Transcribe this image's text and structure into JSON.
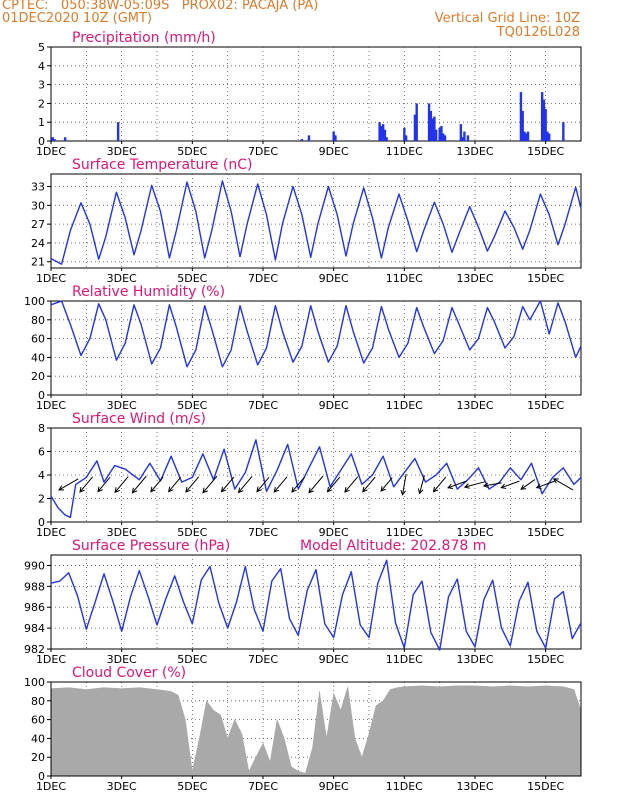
{
  "header": {
    "line1_left": "CPTEC:   050:38W-05:09S   PROX02: PACAJA (PA)",
    "line2_left": "01DEC2020 10Z (GMT)",
    "line2_right": "Vertical Grid Line: 10Z",
    "line3_right": "TQ0126L028",
    "color": "#e07b2a"
  },
  "colors": {
    "line": "#2233ee",
    "bar": "#2233ee",
    "arrow": "#000000",
    "title": "#e0157a",
    "cloud": "#a9a9a9",
    "grid": "#555555"
  },
  "x_labels": [
    "1DEC",
    "3DEC",
    "5DEC",
    "7DEC",
    "9DEC",
    "11DEC",
    "13DEC",
    "15DEC"
  ],
  "x_range_days": [
    0,
    15
  ],
  "chart_data": [
    {
      "type": "bar",
      "title": "Precipitation (mm/h)",
      "ylim": [
        0,
        5
      ],
      "yticks": [
        0,
        1,
        2,
        3,
        4,
        5
      ],
      "x_units": "days since 01DEC2020 10Z",
      "x": [
        0.05,
        0.1,
        0.4,
        1.9,
        7.1,
        7.3,
        8.0,
        8.05,
        9.3,
        9.35,
        9.4,
        9.45,
        9.5,
        10.0,
        10.05,
        10.3,
        10.35,
        10.7,
        10.75,
        10.8,
        10.85,
        10.9,
        11.0,
        11.05,
        11.1,
        11.15,
        11.6,
        11.65,
        11.7,
        11.8,
        13.3,
        13.35,
        13.4,
        13.45,
        13.5,
        13.9,
        13.95,
        14.0,
        14.05,
        14.1,
        14.5
      ],
      "values": [
        0.2,
        0.1,
        0.2,
        1.0,
        0.1,
        0.3,
        0.5,
        0.3,
        1.0,
        0.8,
        0.9,
        0.6,
        0.2,
        0.7,
        0.3,
        1.4,
        2.0,
        2.0,
        1.6,
        1.2,
        1.3,
        0.6,
        0.7,
        0.8,
        0.4,
        0.3,
        0.9,
        0.2,
        0.5,
        0.3,
        2.6,
        1.6,
        0.5,
        0.4,
        0.5,
        2.6,
        2.2,
        1.7,
        0.5,
        0.4,
        1.0
      ]
    },
    {
      "type": "line",
      "title": "Surface Temperature (nC)",
      "ylim": [
        20,
        35
      ],
      "yticks": [
        21,
        24,
        27,
        30,
        33
      ],
      "x_units": "days since 01DEC2020 10Z",
      "x": [
        0.0,
        0.3,
        0.55,
        0.85,
        1.1,
        1.35,
        1.55,
        1.85,
        2.1,
        2.35,
        2.55,
        2.85,
        3.1,
        3.35,
        3.55,
        3.85,
        4.1,
        4.35,
        4.55,
        4.85,
        5.1,
        5.35,
        5.55,
        5.85,
        6.1,
        6.35,
        6.55,
        6.85,
        7.1,
        7.35,
        7.55,
        7.85,
        8.1,
        8.35,
        8.55,
        8.85,
        9.1,
        9.35,
        9.55,
        9.85,
        10.1,
        10.35,
        10.55,
        10.85,
        11.1,
        11.35,
        11.55,
        11.85,
        12.1,
        12.35,
        12.55,
        12.85,
        13.1,
        13.35,
        13.55,
        13.85,
        14.1,
        14.35,
        14.55,
        14.85,
        15.0
      ],
      "values": [
        21.5,
        20.6,
        26,
        30.4,
        27,
        21.4,
        25,
        32.1,
        28,
        22.1,
        26,
        33.2,
        29,
        21.6,
        26,
        33.7,
        29,
        21.6,
        26,
        33.9,
        29,
        21.8,
        27,
        33.4,
        28.5,
        21.3,
        27,
        33,
        28.5,
        21.7,
        27,
        33,
        28.5,
        21.9,
        27,
        32.8,
        28,
        21.6,
        26.5,
        31.8,
        27.5,
        22.6,
        26,
        30.5,
        27,
        22.5,
        25.5,
        29.8,
        26.5,
        22.7,
        25,
        29.1,
        26.5,
        23,
        26,
        31.8,
        28.5,
        23.7,
        27,
        32.9,
        29.5
      ]
    },
    {
      "type": "line",
      "title": "Relative Humidity (%)",
      "ylim": [
        0,
        100
      ],
      "yticks": [
        0,
        20,
        40,
        60,
        80,
        100
      ],
      "x_units": "days since 01DEC2020 10Z",
      "x": [
        0.0,
        0.3,
        0.55,
        0.85,
        1.1,
        1.35,
        1.55,
        1.85,
        2.1,
        2.35,
        2.55,
        2.85,
        3.1,
        3.35,
        3.55,
        3.85,
        4.1,
        4.35,
        4.55,
        4.85,
        5.1,
        5.35,
        5.55,
        5.85,
        6.1,
        6.35,
        6.55,
        6.85,
        7.1,
        7.35,
        7.55,
        7.85,
        8.1,
        8.35,
        8.55,
        8.85,
        9.1,
        9.35,
        9.55,
        9.85,
        10.1,
        10.35,
        10.55,
        10.85,
        11.1,
        11.35,
        11.55,
        11.85,
        12.1,
        12.35,
        12.55,
        12.85,
        13.1,
        13.35,
        13.55,
        13.85,
        14.1,
        14.35,
        14.55,
        14.85,
        15.0
      ],
      "values": [
        96,
        100,
        75,
        42,
        60,
        97,
        80,
        37,
        55,
        96,
        75,
        33,
        50,
        96,
        72,
        30,
        48,
        95,
        70,
        30,
        48,
        95,
        68,
        32,
        50,
        95,
        68,
        35,
        52,
        95,
        68,
        35,
        52,
        95,
        68,
        34,
        50,
        94,
        70,
        40,
        55,
        93,
        72,
        44,
        58,
        93,
        75,
        48,
        60,
        93,
        78,
        50,
        62,
        94,
        80,
        100,
        65,
        98,
        78,
        40,
        52
      ]
    },
    {
      "type": "line",
      "title": "Surface Wind (m/s)",
      "ylim": [
        0,
        8
      ],
      "yticks": [
        0,
        2,
        4,
        6,
        8
      ],
      "x_units": "days since 01DEC2020 10Z",
      "x": [
        0.0,
        0.2,
        0.4,
        0.55,
        0.7,
        1.0,
        1.3,
        1.5,
        1.8,
        2.1,
        2.5,
        2.8,
        3.1,
        3.4,
        3.7,
        4.0,
        4.3,
        4.6,
        4.9,
        5.2,
        5.5,
        5.8,
        6.1,
        6.4,
        6.7,
        7.0,
        7.3,
        7.6,
        7.9,
        8.2,
        8.5,
        8.8,
        9.1,
        9.4,
        9.7,
        10.0,
        10.3,
        10.6,
        10.9,
        11.2,
        11.5,
        11.8,
        12.1,
        12.4,
        12.7,
        13.0,
        13.3,
        13.6,
        13.9,
        14.2,
        14.5,
        14.8,
        15.0
      ],
      "values": [
        2.2,
        1.2,
        0.6,
        0.4,
        3.2,
        3.8,
        5.2,
        3.4,
        4.8,
        4.5,
        3.6,
        5.0,
        3.5,
        5.6,
        3.4,
        3.8,
        5.8,
        3.6,
        6.2,
        2.8,
        4.2,
        7.0,
        2.6,
        4.4,
        6.6,
        2.8,
        4.6,
        6.4,
        3.0,
        4.4,
        5.8,
        3.2,
        4.0,
        5.6,
        3.0,
        4.2,
        5.4,
        3.4,
        4.0,
        5.0,
        2.8,
        3.6,
        4.6,
        2.8,
        3.4,
        4.6,
        3.6,
        5.0,
        2.4,
        3.8,
        4.6,
        3.2,
        3.8
      ],
      "arrows": {
        "x": [
          0.5,
          1.0,
          1.5,
          2.0,
          2.5,
          3.0,
          3.5,
          4.0,
          4.5,
          5.0,
          5.5,
          6.0,
          6.5,
          7.0,
          7.5,
          8.0,
          8.5,
          9.0,
          9.5,
          10.0,
          10.5,
          11.0,
          11.5,
          12.0,
          12.5,
          13.0,
          13.5,
          14.0,
          14.5
        ],
        "speed": [
          3.7,
          3.3,
          3.1,
          3.4,
          3.6,
          3.2,
          3.1,
          3.3,
          3.6,
          3.2,
          3.5,
          3.1,
          3.3,
          3.3,
          3.6,
          3.2,
          3.3,
          3.2,
          2.9,
          3.5,
          3.1,
          3.2,
          3.3,
          3.5,
          3.0,
          3.2,
          2.8,
          3.2,
          3.7
        ],
        "dir_deg": [
          60,
          40,
          40,
          40,
          40,
          40,
          40,
          40,
          40,
          40,
          40,
          40,
          40,
          40,
          40,
          40,
          40,
          40,
          40,
          10,
          15,
          40,
          70,
          75,
          80,
          70,
          55,
          70,
          120
        ]
      }
    },
    {
      "type": "line",
      "title": "Surface Pressure (hPa)",
      "annotation": "Model Altitude: 202.878  m",
      "ylim": [
        982,
        991
      ],
      "yticks": [
        982,
        984,
        986,
        988,
        990
      ],
      "x_units": "days since 01DEC2020 10Z",
      "x": [
        0.0,
        0.25,
        0.5,
        0.75,
        1.0,
        1.25,
        1.5,
        1.75,
        2.0,
        2.25,
        2.5,
        2.75,
        3.0,
        3.25,
        3.5,
        3.75,
        4.0,
        4.25,
        4.5,
        4.75,
        5.0,
        5.25,
        5.5,
        5.75,
        6.0,
        6.25,
        6.5,
        6.75,
        7.0,
        7.25,
        7.5,
        7.75,
        8.0,
        8.25,
        8.5,
        8.75,
        9.0,
        9.25,
        9.5,
        9.75,
        10.0,
        10.25,
        10.5,
        10.75,
        11.0,
        11.25,
        11.5,
        11.75,
        12.0,
        12.25,
        12.5,
        12.75,
        13.0,
        13.25,
        13.5,
        13.75,
        14.0,
        14.25,
        14.5,
        14.75,
        15.0
      ],
      "values": [
        988.3,
        988.5,
        989.3,
        987.1,
        983.9,
        986.5,
        989.2,
        986.6,
        983.7,
        987.0,
        989.5,
        987.0,
        984.3,
        986.8,
        989.0,
        986.5,
        984.4,
        988.6,
        989.9,
        986.4,
        984.0,
        986.5,
        989.9,
        985.8,
        983.7,
        988.5,
        989.7,
        984.9,
        983.3,
        987.6,
        989.6,
        984.4,
        983.1,
        987.2,
        989.4,
        984.3,
        983.1,
        988.3,
        990.5,
        984.5,
        982.1,
        987.2,
        988.5,
        983.6,
        981.9,
        987.0,
        988.7,
        983.7,
        982.2,
        986.7,
        988.6,
        984.0,
        982.3,
        986.6,
        988.4,
        983.7,
        982.1,
        986.8,
        987.5,
        983.0,
        984.5
      ]
    },
    {
      "type": "area",
      "title": "Cloud Cover (%)",
      "ylim": [
        0,
        100
      ],
      "yticks": [
        0,
        20,
        40,
        60,
        80,
        100
      ],
      "x_units": "days since 01DEC2020 10Z",
      "x": [
        0.0,
        0.5,
        1.0,
        1.5,
        2.0,
        2.5,
        3.0,
        3.4,
        3.6,
        3.8,
        4.0,
        4.2,
        4.4,
        4.6,
        4.8,
        5.0,
        5.2,
        5.4,
        5.6,
        5.8,
        6.0,
        6.2,
        6.4,
        6.6,
        6.8,
        7.0,
        7.2,
        7.4,
        7.6,
        7.8,
        8.0,
        8.2,
        8.4,
        8.6,
        8.8,
        9.0,
        9.2,
        9.4,
        9.6,
        9.8,
        10.0,
        10.5,
        11.0,
        11.5,
        12.0,
        12.5,
        13.0,
        13.5,
        14.0,
        14.5,
        14.8,
        15.0
      ],
      "values": [
        93,
        94,
        92,
        94,
        93,
        94,
        92,
        90,
        86,
        60,
        5,
        40,
        80,
        70,
        65,
        40,
        60,
        45,
        5,
        20,
        35,
        15,
        60,
        40,
        10,
        5,
        3,
        30,
        90,
        40,
        88,
        70,
        95,
        40,
        20,
        45,
        75,
        80,
        92,
        94,
        95,
        96,
        95,
        96,
        96,
        95,
        96,
        95,
        96,
        95,
        92,
        70
      ]
    }
  ]
}
